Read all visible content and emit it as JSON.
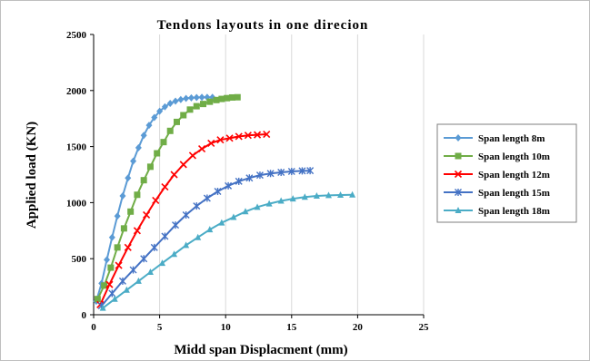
{
  "chart_data": {
    "type": "line",
    "title": "Tendons layouts in one direcion",
    "xlabel": "Midd span Displacment (mm)",
    "ylabel": "Applied load (KN)",
    "xlim": [
      0,
      25
    ],
    "ylim": [
      0,
      2500
    ],
    "xticks": [
      "0",
      "5",
      "10",
      "15",
      "20",
      "25"
    ],
    "yticks": [
      "0",
      "500",
      "1000",
      "1500",
      "2000",
      "2500"
    ],
    "grid": "vertical-major",
    "legend_position": "right",
    "series": [
      {
        "name": "Span length 8m",
        "color": "#5b9bd5",
        "marker": "diamond",
        "x": [
          0.2,
          0.6,
          1.0,
          1.4,
          1.8,
          2.2,
          2.6,
          3.0,
          3.4,
          3.8,
          4.2,
          4.6,
          5.0,
          5.4,
          5.8,
          6.2,
          6.6,
          7.0,
          7.4,
          7.8,
          8.2,
          8.6,
          9.0
        ],
        "y": [
          120,
          280,
          490,
          690,
          880,
          1060,
          1220,
          1370,
          1490,
          1600,
          1690,
          1760,
          1815,
          1855,
          1885,
          1905,
          1920,
          1930,
          1935,
          1938,
          1940,
          1940,
          1940
        ]
      },
      {
        "name": "Span length 10m",
        "color": "#70ad47",
        "marker": "square",
        "x": [
          0.3,
          0.8,
          1.3,
          1.8,
          2.3,
          2.8,
          3.3,
          3.8,
          4.3,
          4.8,
          5.3,
          5.8,
          6.3,
          6.8,
          7.3,
          7.8,
          8.3,
          8.8,
          9.3,
          9.7,
          10.1,
          10.5,
          10.9
        ],
        "y": [
          140,
          260,
          420,
          600,
          770,
          920,
          1070,
          1200,
          1320,
          1440,
          1540,
          1640,
          1720,
          1780,
          1830,
          1860,
          1880,
          1900,
          1915,
          1925,
          1932,
          1938,
          1940
        ]
      },
      {
        "name": "Span length 12m",
        "color": "#ff0000",
        "marker": "x",
        "x": [
          0.5,
          1.2,
          1.9,
          2.6,
          3.3,
          4.0,
          4.7,
          5.4,
          6.1,
          6.8,
          7.5,
          8.2,
          8.9,
          9.6,
          10.3,
          11.0,
          11.7,
          12.4,
          13.1
        ],
        "y": [
          90,
          270,
          440,
          600,
          750,
          890,
          1020,
          1140,
          1250,
          1340,
          1420,
          1480,
          1530,
          1560,
          1575,
          1590,
          1600,
          1605,
          1610
        ]
      },
      {
        "name": "Span length 15m",
        "color": "#4472c4",
        "marker": "star",
        "x": [
          0.6,
          1.4,
          2.2,
          3.0,
          3.8,
          4.6,
          5.4,
          6.2,
          7.0,
          7.8,
          8.6,
          9.4,
          10.2,
          11.0,
          11.8,
          12.6,
          13.4,
          14.2,
          15.0,
          15.8,
          16.4
        ],
        "y": [
          80,
          190,
          300,
          400,
          500,
          600,
          700,
          800,
          890,
          970,
          1040,
          1100,
          1150,
          1190,
          1220,
          1245,
          1260,
          1270,
          1278,
          1283,
          1285
        ]
      },
      {
        "name": "Span length 18m",
        "color": "#4bacc6",
        "marker": "triangle",
        "x": [
          0.7,
          1.6,
          2.5,
          3.4,
          4.3,
          5.2,
          6.1,
          7.0,
          7.9,
          8.8,
          9.7,
          10.6,
          11.5,
          12.4,
          13.3,
          14.2,
          15.1,
          16.0,
          16.9,
          17.8,
          18.7,
          19.6
        ],
        "y": [
          60,
          140,
          220,
          300,
          380,
          460,
          540,
          620,
          690,
          760,
          820,
          870,
          920,
          960,
          990,
          1015,
          1035,
          1050,
          1060,
          1065,
          1068,
          1070
        ]
      }
    ]
  }
}
